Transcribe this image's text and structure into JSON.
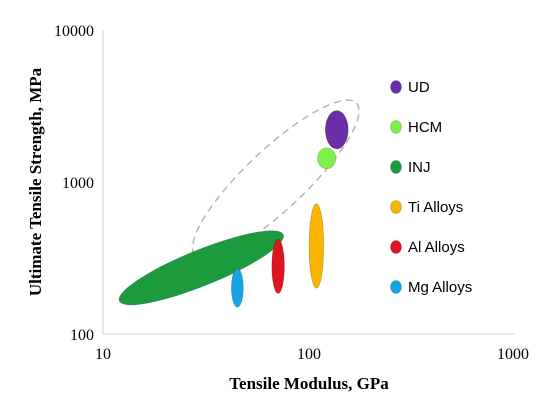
{
  "chart_data": {
    "type": "scatter",
    "title": "",
    "xlabel": "Tensile Modulus, GPa",
    "ylabel": "Ultimate Tensile Strength, MPa",
    "xscale": "log",
    "yscale": "log",
    "xlim": [
      10,
      1000
    ],
    "ylim": [
      100,
      10000
    ],
    "x_ticks": [
      "10",
      "100",
      "1000"
    ],
    "y_ticks": [
      "100",
      "1000",
      "10000"
    ],
    "grid": false,
    "legend_position": "right",
    "series": [
      {
        "name": "UD",
        "color": "#6a2fa6",
        "x_range": [
          120,
          155
        ],
        "y_range": [
          1650,
          2950
        ]
      },
      {
        "name": "HCM",
        "color": "#7ef04e",
        "x_range": [
          110,
          135
        ],
        "y_range": [
          1220,
          1680
        ]
      },
      {
        "name": "INJ",
        "color": "#1c9a3e",
        "x_range": [
          12,
          75
        ],
        "y_range": [
          165,
          450
        ]
      },
      {
        "name": "Ti Alloys",
        "color": "#f7b500",
        "x_range": [
          100,
          118
        ],
        "y_range": [
          200,
          720
        ]
      },
      {
        "name": "Al Alloys",
        "color": "#e0141e",
        "x_range": [
          66,
          76
        ],
        "y_range": [
          185,
          420
        ]
      },
      {
        "name": "Mg Alloys",
        "color": "#16a4e6",
        "x_range": [
          42,
          48
        ],
        "y_range": [
          150,
          270
        ]
      }
    ],
    "annotations": [
      {
        "kind": "dashed-envelope",
        "color": "#b5b5b5",
        "x_range": [
          28,
          170
        ],
        "y_range": [
          330,
          3300
        ]
      }
    ]
  }
}
